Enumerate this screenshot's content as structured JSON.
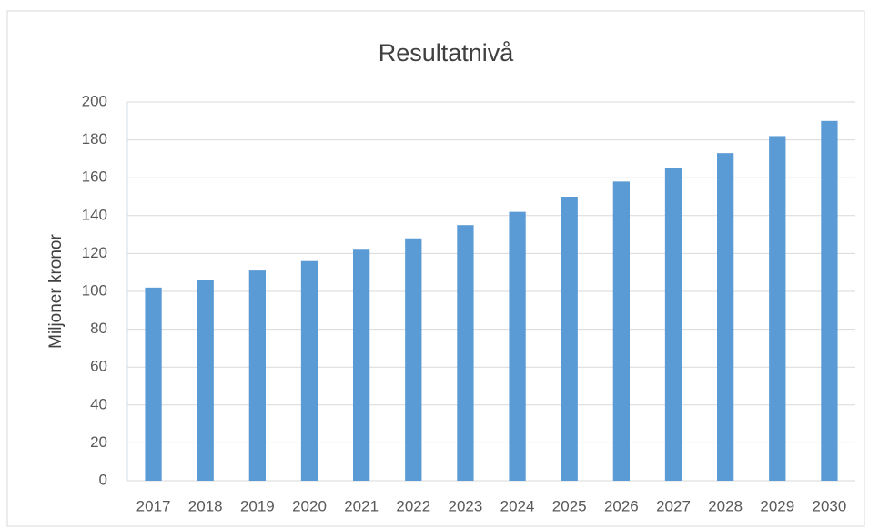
{
  "chart_data": {
    "type": "bar",
    "title": "Resultatnivå",
    "y_label": "Miljoner kronor",
    "categories": [
      "2017",
      "2018",
      "2019",
      "2020",
      "2021",
      "2022",
      "2023",
      "2024",
      "2025",
      "2026",
      "2027",
      "2028",
      "2029",
      "2030"
    ],
    "values": [
      102,
      106,
      111,
      116,
      122,
      128,
      135,
      142,
      150,
      158,
      165,
      173,
      182,
      190
    ],
    "color": "#5b9bd5",
    "ylim": [
      0,
      200
    ],
    "yticks": [
      0,
      20,
      40,
      60,
      80,
      100,
      120,
      140,
      160,
      180,
      200
    ],
    "grid": true
  }
}
